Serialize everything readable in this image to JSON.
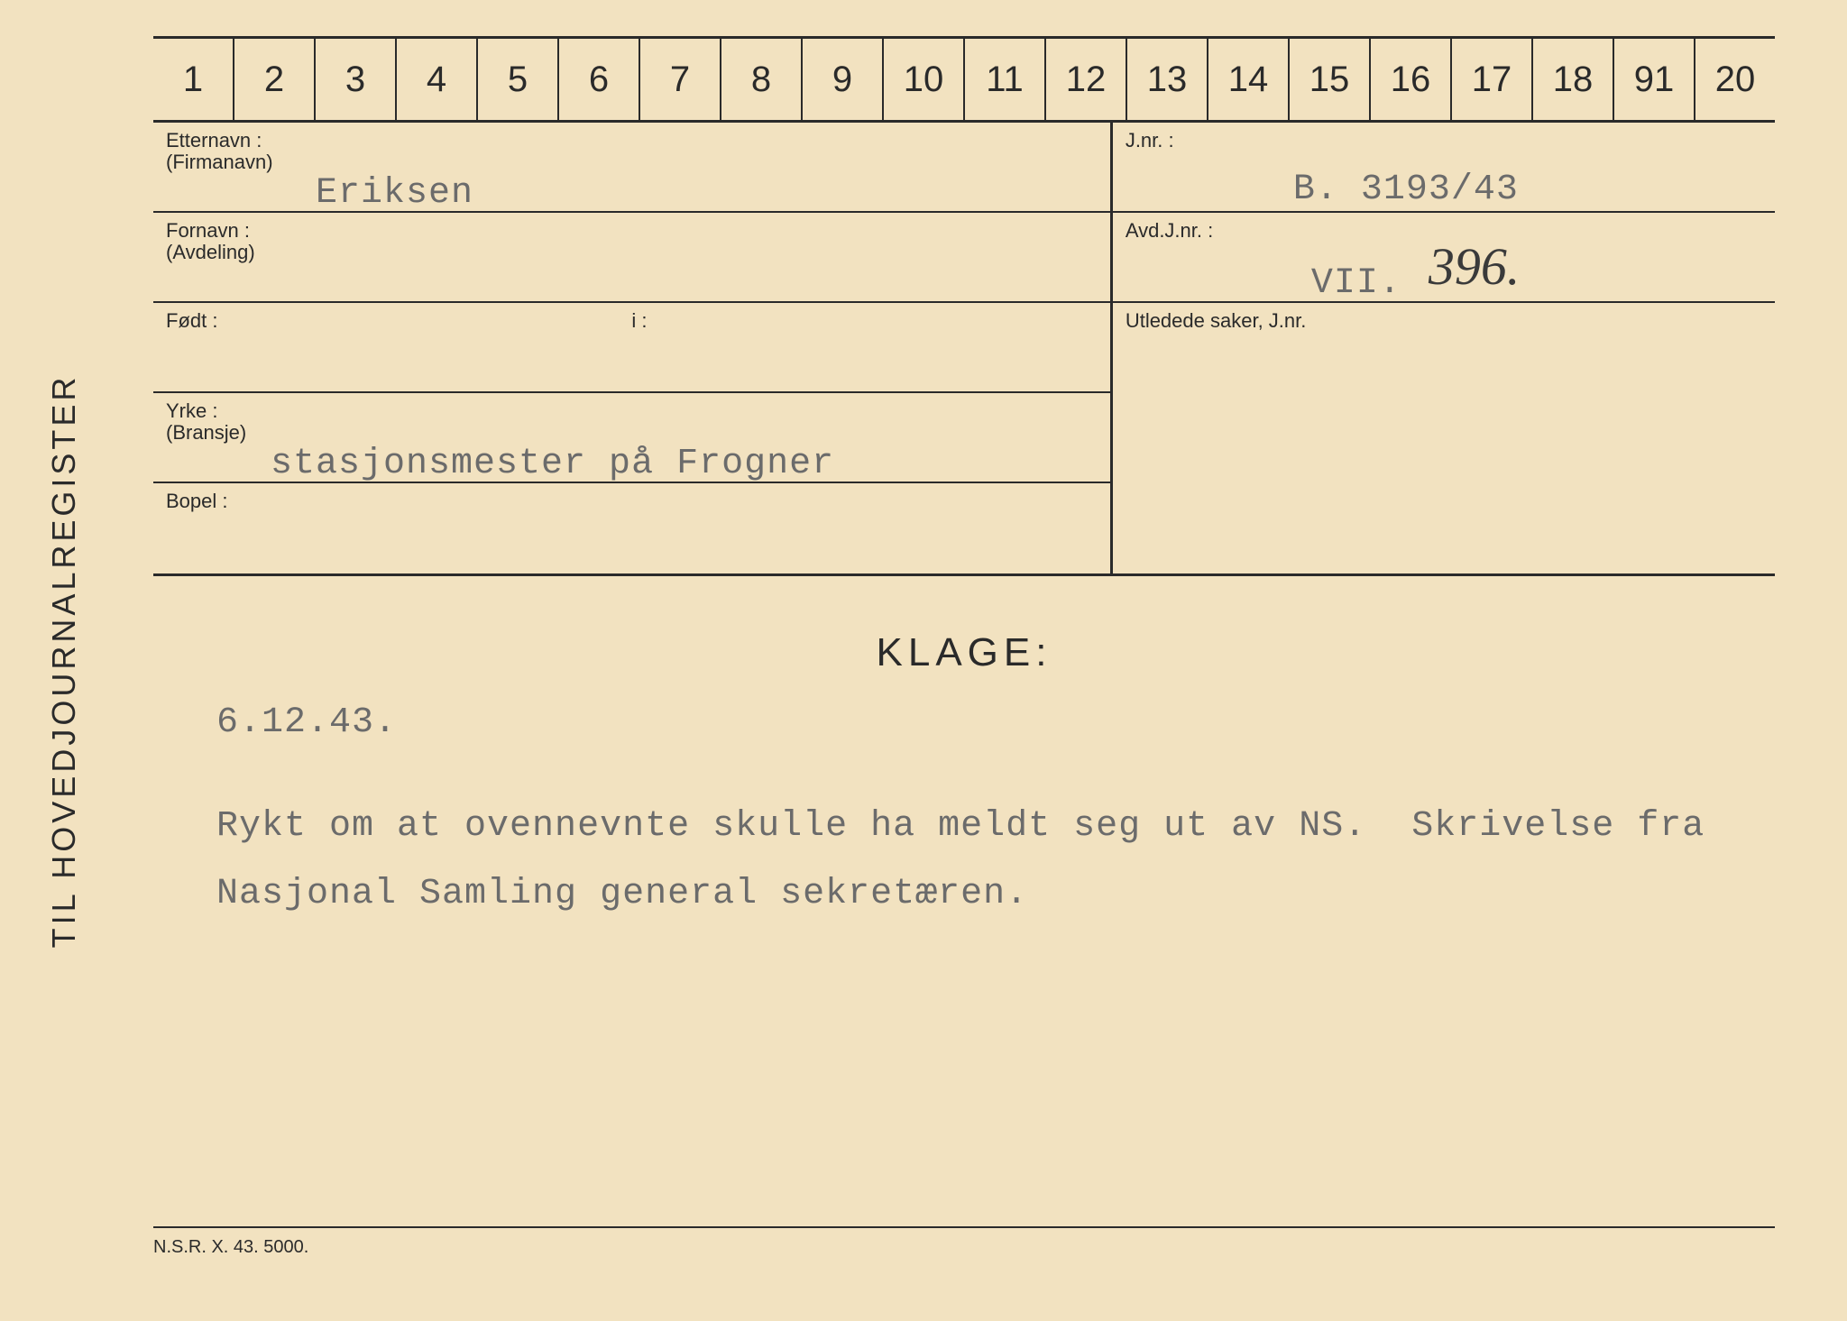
{
  "card": {
    "background": "#f2e2c0",
    "border_color": "#2a2a2a",
    "sidelabel": "TIL HOVEDJOURNALREGISTER",
    "ruler_numbers": [
      "1",
      "2",
      "3",
      "4",
      "5",
      "6",
      "7",
      "8",
      "9",
      "10",
      "11",
      "12",
      "13",
      "14",
      "15",
      "16",
      "17",
      "18",
      "91",
      "20"
    ],
    "fields": {
      "etternavn_label1": "Etternavn :",
      "etternavn_label2": "(Firmanavn)",
      "etternavn_value": "Eriksen",
      "jnr_label": "J.nr. :",
      "jnr_value": "B. 3193/43",
      "fornavn_label1": "Fornavn :",
      "fornavn_label2": "(Avdeling)",
      "fornavn_value": "",
      "avdjnr_label": "Avd.J.nr. :",
      "avdjnr_typed": "VII.",
      "avdjnr_hand": "396.",
      "fodt_label": "Født :",
      "fodt_i_label": "i :",
      "utledede_label": "Utledede saker, J.nr.",
      "yrke_label1": "Yrke :",
      "yrke_label2": "(Bransje)",
      "yrke_value": "stasjonsmester på Frogner",
      "bopel_label": "Bopel :"
    },
    "klage_heading": "KLAGE:",
    "klage_date": "6.12.43.",
    "klage_body_line1": "Rykt om at ovennevnte skulle ha meldt seg ut av NS.  Skrivelse fra",
    "klage_body_line2": "Nasjonal Samling general sekretæren.",
    "footer": "N.S.R.  X.  43.   5000."
  },
  "style": {
    "label_fontsize": 22,
    "typed_fontsize": 40,
    "typed_color": "#6b6b6b",
    "heading_fontsize": 44,
    "ruler_fontsize": 40,
    "handwritten_fontsize": 58
  }
}
